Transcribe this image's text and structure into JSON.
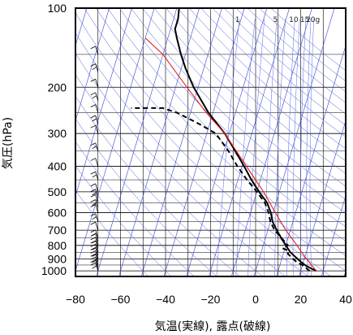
{
  "chart_data": {
    "type": "line",
    "subtype": "skew-t log-p diagram",
    "xlabel": "気温(実線), 露点(破線)",
    "ylabel": "気圧(hPa)",
    "xlim": [
      -80,
      40
    ],
    "ylim": [
      1050,
      100
    ],
    "y_scale": "log",
    "x_ticks": [
      "−80",
      "−60",
      "−40",
      "−20",
      "0",
      "20",
      "40"
    ],
    "y_ticks": [
      "100",
      "200",
      "300",
      "400",
      "500",
      "600",
      "700",
      "800",
      "900",
      "1000"
    ],
    "mixing_ratio_labels": [
      "1",
      "5",
      "10",
      "15",
      "20g"
    ],
    "series": [
      {
        "key": "temperature",
        "style": "solid",
        "color": "#000000",
        "points": [
          [
            1000,
            27
          ],
          [
            960,
            22
          ],
          [
            925,
            19
          ],
          [
            900,
            17
          ],
          [
            850,
            13
          ],
          [
            800,
            10
          ],
          [
            750,
            7
          ],
          [
            700,
            4
          ],
          [
            650,
            1
          ],
          [
            600,
            -1
          ],
          [
            550,
            -4
          ],
          [
            500,
            -9
          ],
          [
            450,
            -14
          ],
          [
            400,
            -19
          ],
          [
            350,
            -25
          ],
          [
            300,
            -32
          ],
          [
            250,
            -42
          ],
          [
            200,
            -52
          ],
          [
            170,
            -58
          ],
          [
            150,
            -62
          ],
          [
            130,
            -66
          ],
          [
            120,
            -68
          ],
          [
            110,
            -68
          ],
          [
            100,
            -69
          ]
        ]
      },
      {
        "key": "dewpoint",
        "style": "dashed",
        "color": "#000000",
        "points": [
          [
            1000,
            24
          ],
          [
            975,
            22
          ],
          [
            950,
            20
          ],
          [
            925,
            17
          ],
          [
            900,
            15
          ],
          [
            860,
            12
          ],
          [
            840,
            12
          ],
          [
            820,
            9
          ],
          [
            800,
            11
          ],
          [
            700,
            3
          ],
          [
            650,
            0
          ],
          [
            600,
            -2
          ],
          [
            550,
            -5
          ],
          [
            500,
            -10
          ],
          [
            450,
            -16
          ],
          [
            400,
            -22
          ],
          [
            350,
            -28
          ],
          [
            300,
            -36
          ],
          [
            275,
            -45
          ],
          [
            250,
            -56
          ],
          [
            240,
            -63
          ],
          [
            240,
            -77
          ]
        ]
      },
      {
        "key": "parcel",
        "style": "solid",
        "color": "#e02020",
        "points": [
          [
            1000,
            27
          ],
          [
            950,
            24
          ],
          [
            900,
            21
          ],
          [
            850,
            18
          ],
          [
            800,
            15
          ],
          [
            700,
            8
          ],
          [
            600,
            1
          ],
          [
            500,
            -7
          ],
          [
            400,
            -18
          ],
          [
            300,
            -32
          ],
          [
            250,
            -43
          ],
          [
            200,
            -55
          ],
          [
            150,
            -70
          ],
          [
            130,
            -80
          ]
        ]
      }
    ],
    "wind_barbs": {
      "x_position": -70,
      "levels_hpa": [
        1000,
        975,
        950,
        925,
        900,
        875,
        850,
        825,
        800,
        775,
        750,
        700,
        650,
        600,
        575,
        550,
        525,
        500,
        450,
        400,
        350,
        300,
        275,
        250,
        225,
        200,
        175,
        150
      ]
    },
    "grid": true,
    "background_lines": [
      "isotherms",
      "dry adiabats",
      "moist adiabats",
      "mixing ratio lines"
    ]
  }
}
